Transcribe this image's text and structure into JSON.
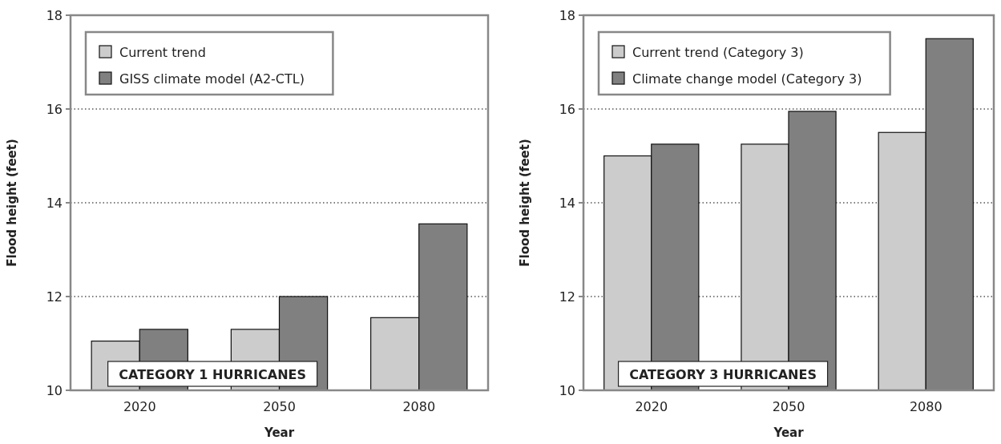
{
  "chart_data": [
    {
      "type": "bar",
      "categories": [
        "2020",
        "2050",
        "2080"
      ],
      "xlabel": "Year",
      "ylabel": "Flood height (feet)",
      "ylim": [
        10,
        18
      ],
      "yticks": [
        10,
        12,
        14,
        16,
        18
      ],
      "grid": "y",
      "legend": "top left",
      "annotations": [
        "CATEGORY 1 HURRICANES"
      ],
      "series": [
        {
          "name": "Current trend",
          "color": "#cccccc",
          "values": [
            11.05,
            11.3,
            11.55
          ]
        },
        {
          "name": "GISS climate model (A2-CTL)",
          "color": "#808080",
          "values": [
            11.3,
            12.0,
            13.55
          ]
        }
      ]
    },
    {
      "type": "bar",
      "categories": [
        "2020",
        "2050",
        "2080"
      ],
      "xlabel": "Year",
      "ylabel": "Flood height (feet)",
      "ylim": [
        10,
        18
      ],
      "yticks": [
        10,
        12,
        14,
        16,
        18
      ],
      "grid": "y",
      "legend": "top left",
      "annotations": [
        "CATEGORY 3 HURRICANES"
      ],
      "series": [
        {
          "name": "Current trend (Category 3)",
          "color": "#cccccc",
          "values": [
            15.0,
            15.25,
            15.5
          ]
        },
        {
          "name": "Climate change model (Category 3)",
          "color": "#808080",
          "values": [
            15.25,
            15.95,
            17.5
          ]
        }
      ]
    }
  ]
}
